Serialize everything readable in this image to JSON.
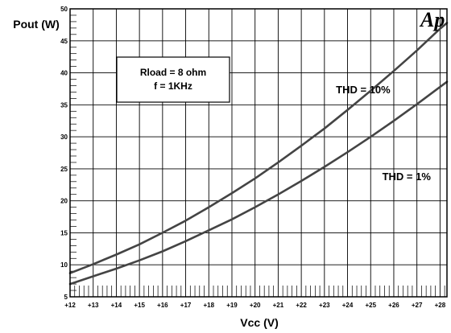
{
  "chart_data": {
    "type": "line",
    "xlabel": "Vcc (V)",
    "ylabel": "Pout (W)",
    "xlim": [
      12,
      28.3
    ],
    "ylim": [
      5,
      50
    ],
    "x_ticks": [
      "+12",
      "+13",
      "+14",
      "+15",
      "+16",
      "+17",
      "+18",
      "+19",
      "+20",
      "+21",
      "+22",
      "+23",
      "+24",
      "+25",
      "+26",
      "+27",
      "+28"
    ],
    "y_ticks": [
      "5",
      "10",
      "15",
      "20",
      "25",
      "30",
      "35",
      "40",
      "45",
      "50"
    ],
    "grid": true,
    "series": [
      {
        "name": "THD = 10%",
        "x": [
          12,
          13,
          14,
          15,
          16,
          17,
          18,
          19,
          20,
          21,
          22,
          23,
          24,
          25,
          26,
          27,
          28,
          28.3
        ],
        "y": [
          8.7,
          10.1,
          11.6,
          13.2,
          15.0,
          16.9,
          19.0,
          21.2,
          23.5,
          26.0,
          28.6,
          31.3,
          34.2,
          37.2,
          40.3,
          43.5,
          46.9,
          47.8
        ]
      },
      {
        "name": "THD = 1%",
        "x": [
          12,
          13,
          14,
          15,
          16,
          17,
          18,
          19,
          20,
          21,
          22,
          23,
          24,
          25,
          26,
          27,
          28,
          28.3
        ],
        "y": [
          7.0,
          8.2,
          9.4,
          10.7,
          12.1,
          13.7,
          15.4,
          17.1,
          19.0,
          21.0,
          23.1,
          25.3,
          27.6,
          30.0,
          32.5,
          35.1,
          37.8,
          38.6
        ]
      }
    ],
    "annotations": [
      {
        "text": "THD = 10%",
        "x": 23.5,
        "y": 36.8
      },
      {
        "text": "THD = 1%",
        "x": 25.5,
        "y": 23.2
      }
    ],
    "legend_box": {
      "line1": "Rload = 8 ohm",
      "line2": "f = 1KHz"
    },
    "logo_text": "Ap"
  }
}
